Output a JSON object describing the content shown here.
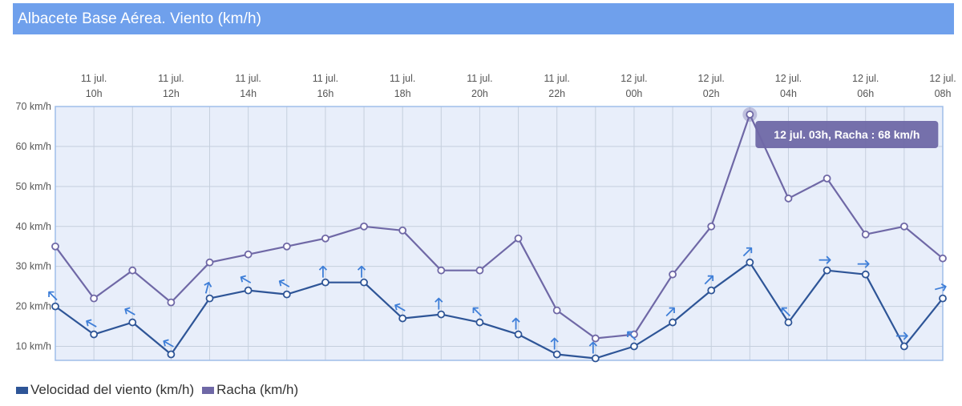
{
  "header": {
    "title": "Albacete Base Aérea. Viento (km/h)"
  },
  "colors": {
    "title_bg": "#6fa0ec",
    "plot_bg": "#e8eefa",
    "plot_border": "#9fbde9",
    "grid": "#c5cfdd",
    "wind": "#2e5597",
    "gust": "#6f68a6",
    "arrow": "#3f7fd8",
    "tooltip_bg": "#6f68a6"
  },
  "tooltip": {
    "text": "12 jul. 03h, Racha : 68 km/h",
    "series_index": 1,
    "point_index": 18
  },
  "chart_data": {
    "type": "line",
    "title": "Albacete Base Aérea. Viento (km/h)",
    "x": [
      "11 jul. 09h",
      "11 jul. 10h",
      "11 jul. 11h",
      "11 jul. 12h",
      "11 jul. 13h",
      "11 jul. 14h",
      "11 jul. 15h",
      "11 jul. 16h",
      "11 jul. 17h",
      "11 jul. 18h",
      "11 jul. 19h",
      "11 jul. 20h",
      "11 jul. 21h",
      "11 jul. 22h",
      "11 jul. 23h",
      "12 jul. 00h",
      "12 jul. 01h",
      "12 jul. 02h",
      "12 jul. 03h",
      "12 jul. 04h",
      "12 jul. 05h",
      "12 jul. 06h",
      "12 jul. 07h",
      "12 jul. 08h"
    ],
    "x_ticks": [
      {
        "day": "11 jul.",
        "hour": "10h",
        "index": 1
      },
      {
        "day": "11 jul.",
        "hour": "12h",
        "index": 3
      },
      {
        "day": "11 jul.",
        "hour": "14h",
        "index": 5
      },
      {
        "day": "11 jul.",
        "hour": "16h",
        "index": 7
      },
      {
        "day": "11 jul.",
        "hour": "18h",
        "index": 9
      },
      {
        "day": "11 jul.",
        "hour": "20h",
        "index": 11
      },
      {
        "day": "11 jul.",
        "hour": "22h",
        "index": 13
      },
      {
        "day": "12 jul.",
        "hour": "00h",
        "index": 15
      },
      {
        "day": "12 jul.",
        "hour": "02h",
        "index": 17
      },
      {
        "day": "12 jul.",
        "hour": "04h",
        "index": 19
      },
      {
        "day": "12 jul.",
        "hour": "06h",
        "index": 21
      },
      {
        "day": "12 jul.",
        "hour": "08h",
        "index": 23
      }
    ],
    "y_ticks": [
      {
        "value": 10,
        "label": "10 km/h"
      },
      {
        "value": 20,
        "label": "20 km/h"
      },
      {
        "value": 30,
        "label": "30 km/h"
      },
      {
        "value": 40,
        "label": "40 km/h"
      },
      {
        "value": 50,
        "label": "50 km/h"
      },
      {
        "value": 60,
        "label": "60 km/h"
      },
      {
        "value": 70,
        "label": "70 km/h"
      }
    ],
    "ylim": [
      6.5,
      70
    ],
    "grid": true,
    "legend": "bottom-left",
    "series": [
      {
        "name": "Velocidad del viento (km/h)",
        "values": [
          20,
          13,
          16,
          8,
          22,
          24,
          23,
          26,
          26,
          17,
          18,
          16,
          13,
          8,
          7,
          10,
          16,
          24,
          31,
          16,
          29,
          28,
          10,
          22
        ],
        "direction_arrows_deg": [
          315,
          300,
          300,
          300,
          15,
          300,
          300,
          0,
          0,
          300,
          0,
          315,
          0,
          0,
          0,
          315,
          45,
          45,
          45,
          315,
          90,
          90,
          90,
          75
        ]
      },
      {
        "name": "Racha (km/h)",
        "values": [
          35,
          22,
          29,
          21,
          31,
          33,
          35,
          37,
          40,
          39,
          29,
          29,
          37,
          19,
          12,
          13,
          28,
          40,
          68,
          47,
          52,
          38,
          40,
          32
        ]
      }
    ]
  },
  "legend": {
    "items": [
      {
        "label": "Velocidad del viento (km/h)",
        "color": "#2e5597"
      },
      {
        "label": "Racha (km/h)",
        "color": "#6f68a6"
      }
    ]
  }
}
